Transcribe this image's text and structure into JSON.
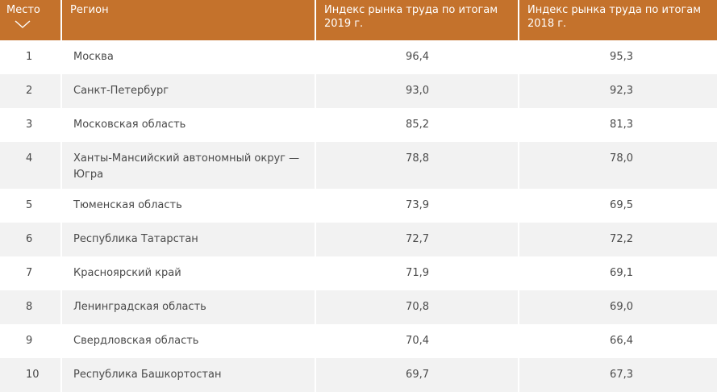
{
  "table": {
    "headers": {
      "rank": "Место",
      "region": "Регион",
      "index_2019": "Индекс рынка труда по итогам 2019 г.",
      "index_2018": "Индекс рынка труда по итогам 2018 г."
    },
    "sort_icon": "chevron-down-icon",
    "rows": [
      {
        "rank": "1",
        "region": "Москва",
        "index_2019": "96,4",
        "index_2018": "95,3"
      },
      {
        "rank": "2",
        "region": "Санкт-Петербург",
        "index_2019": "93,0",
        "index_2018": "92,3"
      },
      {
        "rank": "3",
        "region": "Московская область",
        "index_2019": "85,2",
        "index_2018": "81,3"
      },
      {
        "rank": "4",
        "region": "Ханты-Мансийский автономный округ — Югра",
        "index_2019": "78,8",
        "index_2018": "78,0"
      },
      {
        "rank": "5",
        "region": "Тюменская область",
        "index_2019": "73,9",
        "index_2018": "69,5"
      },
      {
        "rank": "6",
        "region": "Республика Татарстан",
        "index_2019": "72,7",
        "index_2018": "72,2"
      },
      {
        "rank": "7",
        "region": "Красноярский край",
        "index_2019": "71,9",
        "index_2018": "69,1"
      },
      {
        "rank": "8",
        "region": "Ленинградская область",
        "index_2019": "70,8",
        "index_2018": "69,0"
      },
      {
        "rank": "9",
        "region": "Свердловская область",
        "index_2019": "70,4",
        "index_2018": "66,4"
      },
      {
        "rank": "10",
        "region": "Республика Башкортостан",
        "index_2019": "69,7",
        "index_2018": "67,3"
      }
    ]
  },
  "colors": {
    "header_bg": "#c4722c",
    "header_text": "#ffffff",
    "row_alt_bg": "#f2f2f2",
    "text": "#4a4a4a"
  }
}
